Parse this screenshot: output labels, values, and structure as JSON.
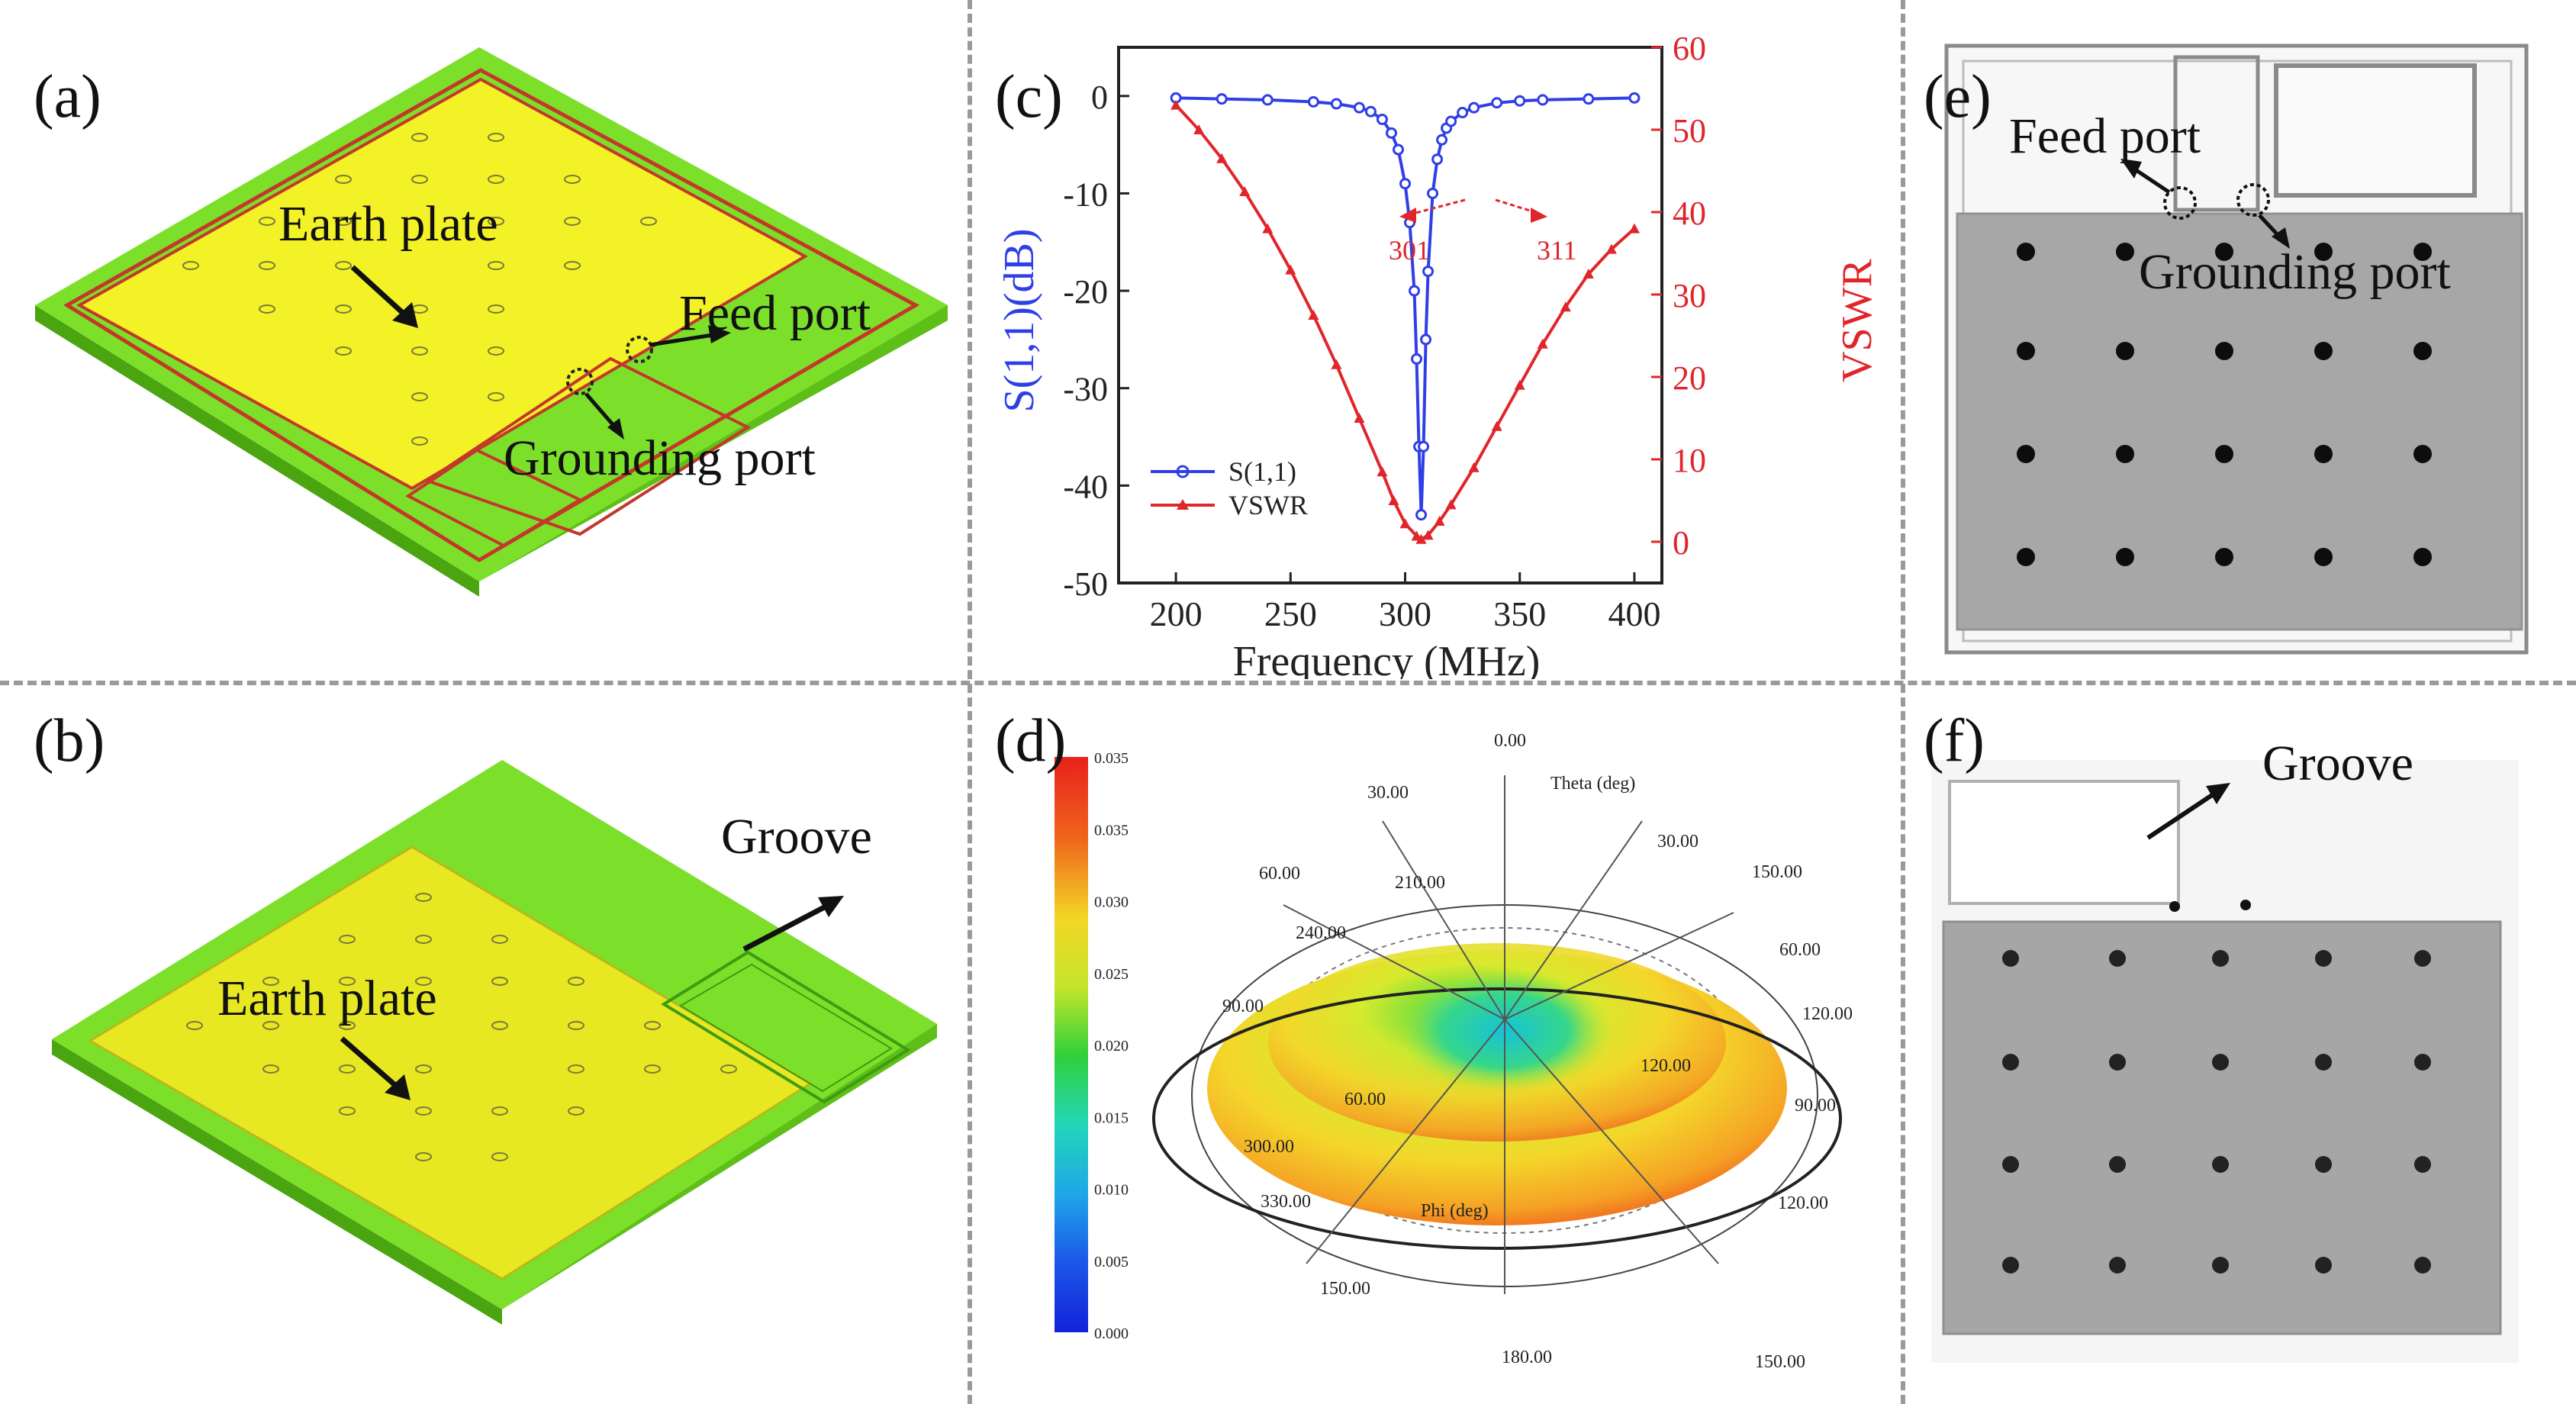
{
  "panels": {
    "a": {
      "label": "(a)",
      "earth_plate": "Earth plate",
      "feed_port": "Feed port",
      "grounding_port": "Grounding port"
    },
    "b": {
      "label": "(b)",
      "earth_plate": "Earth plate",
      "groove": "Groove"
    },
    "c": {
      "label": "(c)",
      "annotation_left": "301",
      "annotation_right": "311"
    },
    "d": {
      "label": "(d)",
      "colorbar_ticks": [
        "0.035",
        "0.035",
        "0.030",
        "0.025",
        "0.020",
        "0.015",
        "0.010",
        "0.005",
        "0.000"
      ],
      "theta_axis_label": "Theta (deg)",
      "phi_axis_label": "Phi (deg)",
      "angle_labels": [
        "0.00",
        "30.00",
        "30.00",
        "60.00",
        "60.00",
        "90.00",
        "90.00",
        "120.00",
        "120.00",
        "150.00",
        "150.00",
        "180.00",
        "210.00",
        "240.00",
        "300.00",
        "330.00",
        "120.00",
        "150.00",
        "60.00"
      ]
    },
    "e": {
      "label": "(e)",
      "feed_port": "Feed port",
      "grounding_port": "Grounding port"
    },
    "f": {
      "label": "(f)",
      "groove": "Groove"
    }
  },
  "colors": {
    "s11": "#2f3fe6",
    "vswr": "#e0262b",
    "board_green": "#7ce02a",
    "plate_yellow": "#f2f227",
    "trace_red": "#c4382a",
    "photo_gray": "#a7a7a7"
  },
  "chart_data": {
    "type": "line",
    "title": "",
    "xlabel": "Frequency (MHz)",
    "ylabel": "S(1,1)(dB)",
    "y2label": "VSWR",
    "xlim": [
      175,
      412
    ],
    "ylim": [
      -50,
      5
    ],
    "y2lim": [
      -5,
      60
    ],
    "x_ticks": [
      200,
      250,
      300,
      350,
      400
    ],
    "y_ticks": [
      0,
      -10,
      -20,
      -30,
      -40,
      -50
    ],
    "y2_ticks": [
      0,
      10,
      20,
      30,
      40,
      50,
      60
    ],
    "legend": "bottom-left",
    "series": [
      {
        "name": "S(1,1)",
        "axis": "left",
        "x": [
          200,
          220,
          240,
          260,
          270,
          280,
          285,
          290,
          294,
          297,
          300,
          302,
          304,
          305,
          306,
          307,
          308,
          309,
          310,
          312,
          314,
          316,
          318,
          320,
          325,
          330,
          340,
          350,
          360,
          380,
          400
        ],
        "y": [
          -0.2,
          -0.3,
          -0.4,
          -0.6,
          -0.8,
          -1.2,
          -1.6,
          -2.4,
          -3.8,
          -5.5,
          -9,
          -13,
          -20,
          -27,
          -36,
          -43,
          -36,
          -25,
          -18,
          -10,
          -6.5,
          -4.5,
          -3.3,
          -2.6,
          -1.7,
          -1.2,
          -0.7,
          -0.5,
          -0.4,
          -0.3,
          -0.2
        ]
      },
      {
        "name": "VSWR",
        "axis": "right",
        "x": [
          200,
          210,
          220,
          230,
          240,
          250,
          260,
          270,
          280,
          290,
          295,
          300,
          305,
          307,
          310,
          315,
          320,
          330,
          340,
          350,
          360,
          370,
          380,
          390,
          400
        ],
        "y": [
          53,
          50,
          46.5,
          42.5,
          38,
          33,
          27.5,
          21.5,
          15,
          8.5,
          5,
          2.2,
          0.7,
          0.3,
          0.8,
          2.5,
          4.5,
          9,
          14,
          19,
          24,
          28.5,
          32.5,
          35.5,
          38
        ]
      }
    ]
  }
}
